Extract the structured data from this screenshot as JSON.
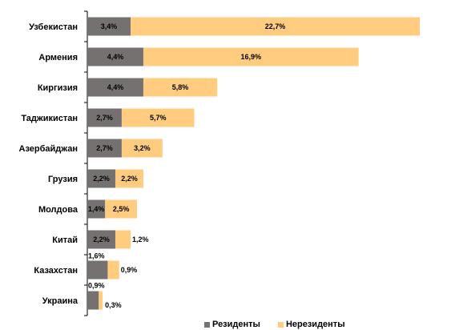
{
  "chart_data": {
    "type": "bar",
    "orientation": "horizontal",
    "stacked": true,
    "categories": [
      "Узбекистан",
      "Армения",
      "Киргизия",
      "Таджикистан",
      "Азербайджан",
      "Грузия",
      "Молдова",
      "Китай",
      "Казахстан",
      "Украина"
    ],
    "series": [
      {
        "name": "Резиденты",
        "color": "#767171",
        "values": [
          3.4,
          4.4,
          4.4,
          2.7,
          2.7,
          2.2,
          1.4,
          2.2,
          1.6,
          0.9
        ],
        "labels": [
          "3,4%",
          "4,4%",
          "4,4%",
          "2,7%",
          "2,7%",
          "2,2%",
          "1,4%",
          "2,2%",
          "1,6%",
          "0,9%"
        ]
      },
      {
        "name": "Нерезиденты",
        "color": "#FFCC80",
        "values": [
          22.7,
          16.9,
          5.8,
          5.7,
          3.2,
          2.2,
          2.5,
          1.2,
          0.9,
          0.3
        ],
        "labels": [
          "22,7%",
          "16,9%",
          "5,8%",
          "5,7%",
          "3,2%",
          "2,2%",
          "2,5%",
          "1,2%",
          "0,9%",
          "0,3%"
        ]
      }
    ],
    "grid": false,
    "legend_position": "bottom"
  }
}
